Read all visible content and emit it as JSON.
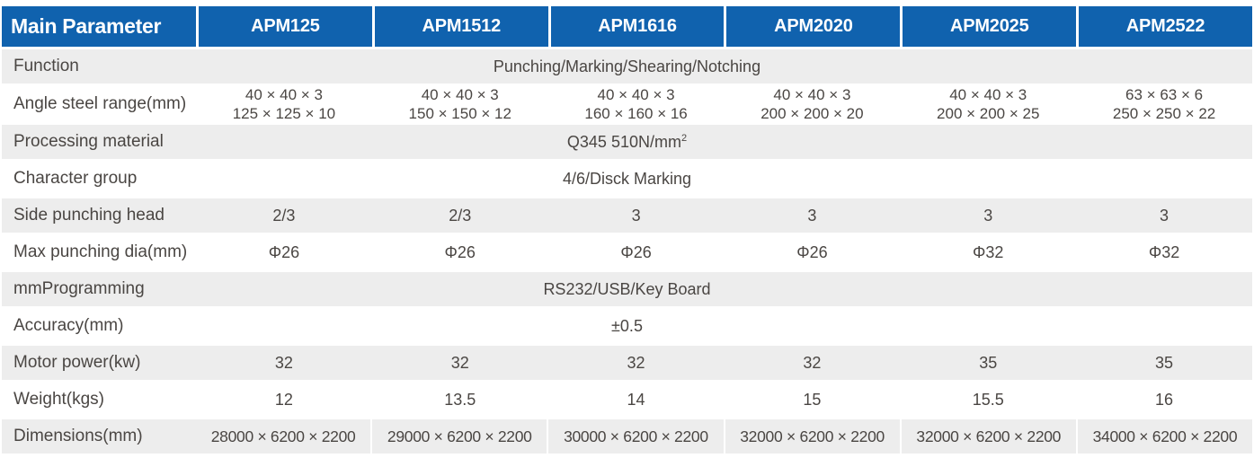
{
  "table": {
    "colors": {
      "header_bg": "#1062AE",
      "stripe_bg": "#EDEDED",
      "header_text": "#FFFFFF",
      "body_text": "#4A4643"
    },
    "header": {
      "label": "Main Parameter",
      "columns": [
        "APM125",
        "APM1512",
        "APM1616",
        "APM2020",
        "APM2025",
        "APM2522"
      ]
    },
    "rows": [
      {
        "label": "Function",
        "type": "span",
        "value": "Punching/Marking/Shearing/Notching"
      },
      {
        "label": "Angle steel range(mm)",
        "type": "cols2",
        "values": [
          [
            "40 × 40 × 3",
            "125 × 125 × 10"
          ],
          [
            "40 × 40 × 3",
            "150 × 150 × 12"
          ],
          [
            "40 × 40 × 3",
            "160 × 160 × 16"
          ],
          [
            "40 × 40 × 3",
            "200 × 200 × 20"
          ],
          [
            "40 × 40 × 3",
            "200 × 200 × 25"
          ],
          [
            "63 × 63 × 6",
            "250 × 250 × 22"
          ]
        ]
      },
      {
        "label": "Processing material",
        "type": "span",
        "value": "Q345 510N/mm",
        "sup": "2"
      },
      {
        "label": "Character group",
        "type": "span",
        "value": "4/6/Disck Marking"
      },
      {
        "label": "Side punching head",
        "type": "cols",
        "values": [
          "2/3",
          "2/3",
          "3",
          "3",
          "3",
          "3"
        ]
      },
      {
        "label": "Max punching dia(mm)",
        "type": "cols",
        "values": [
          "Φ26",
          "Φ26",
          "Φ26",
          "Φ26",
          "Φ32",
          "Φ32"
        ]
      },
      {
        "label": "mmProgramming",
        "type": "span",
        "value": "RS232/USB/Key Board"
      },
      {
        "label": "Accuracy(mm)",
        "type": "span",
        "value": "±0.5"
      },
      {
        "label": "Motor power(kw)",
        "type": "cols",
        "values": [
          "32",
          "32",
          "32",
          "32",
          "35",
          "35"
        ]
      },
      {
        "label": "Weight(kgs)",
        "type": "cols",
        "values": [
          "12",
          "13.5",
          "14",
          "15",
          "15.5",
          "16"
        ]
      },
      {
        "label": "Dimensions(mm)",
        "type": "cols",
        "values": [
          "28000 × 6200 × 2200",
          "29000 × 6200 × 2200",
          "30000 × 6200 × 2200",
          "32000 × 6200 × 2200",
          "32000 × 6200 × 2200",
          "34000 × 6200 × 2200"
        ]
      }
    ]
  }
}
